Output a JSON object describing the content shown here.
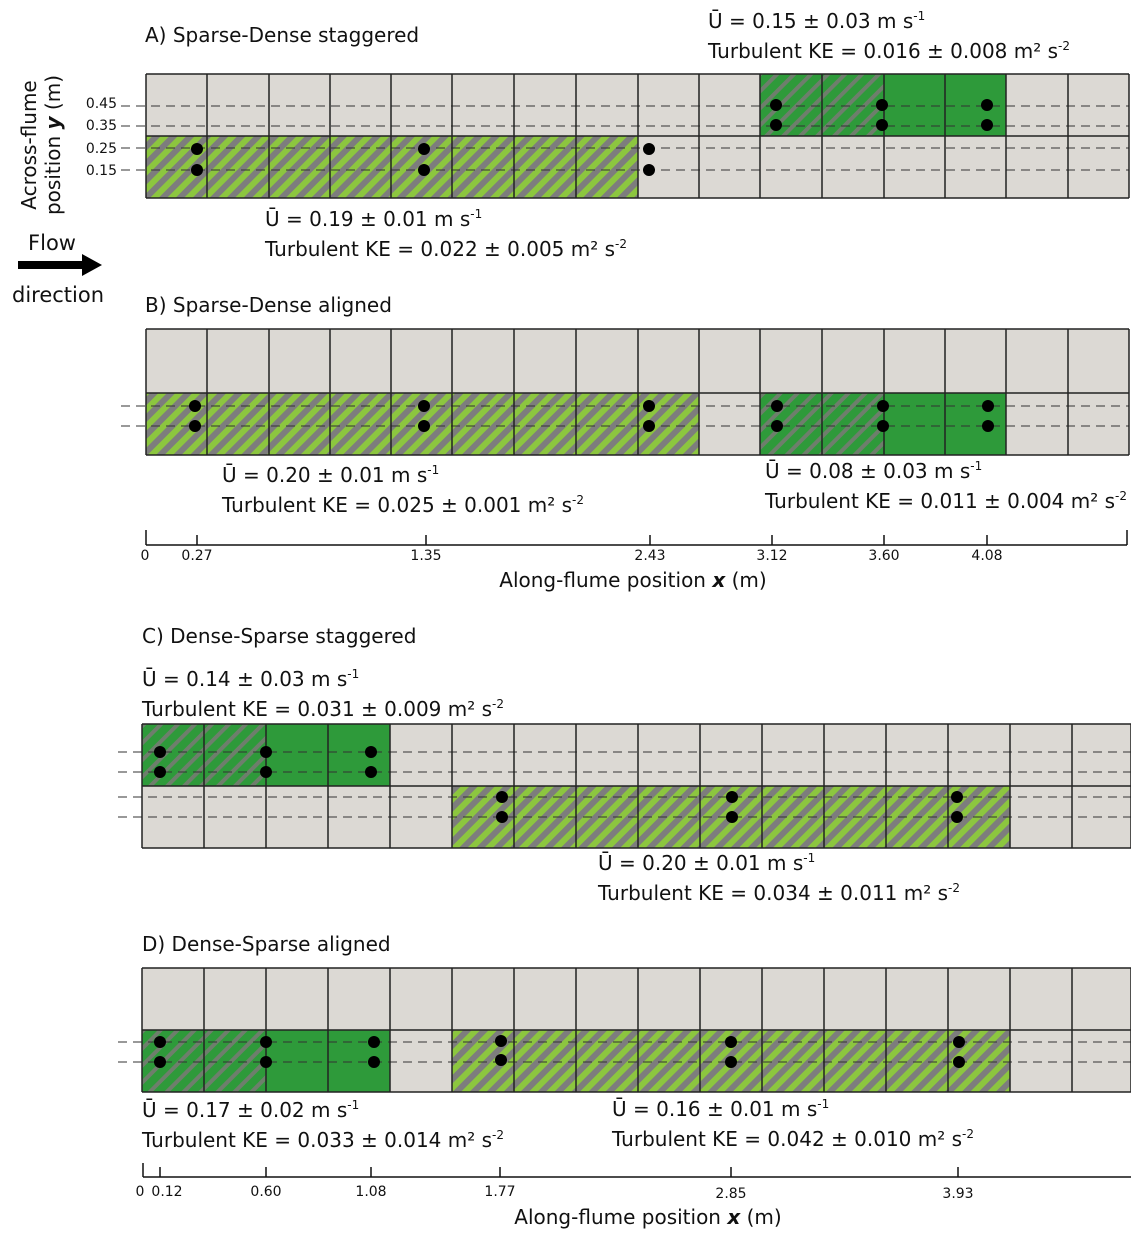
{
  "flow_label": {
    "line1": "Flow",
    "line2": "direction"
  },
  "y_axis": {
    "title_line1": "Across-flume",
    "title_line2_prefix": "position ",
    "title_var": "y",
    "title_line2_suffix": " (m)",
    "ticks": [
      "0.45",
      "0.35",
      "0.25",
      "0.15"
    ]
  },
  "panels": [
    {
      "title": "A) Sparse-Dense staggered",
      "stats": [
        {
          "u": "Ū = 0.19 ± 0.01 m s",
          "u_exp": "-1",
          "tke": "Turbulent KE = 0.022 ± 0.005 m² s",
          "tke_exp": "-2"
        },
        {
          "u": "Ū = 0.15 ± 0.03 m s",
          "u_exp": "-1",
          "tke": "Turbulent KE = 0.016 ± 0.008 m² s",
          "tke_exp": "-2"
        }
      ]
    },
    {
      "title": "B) Sparse-Dense aligned",
      "stats": [
        {
          "u": "Ū = 0.20 ± 0.01 m s",
          "u_exp": "-1",
          "tke": "Turbulent KE = 0.025 ± 0.001 m² s",
          "tke_exp": "-2"
        },
        {
          "u": "Ū = 0.08 ± 0.03 m s",
          "u_exp": "-1",
          "tke": "Turbulent KE = 0.011 ± 0.004 m² s",
          "tke_exp": "-2"
        }
      ]
    },
    {
      "title": "C) Dense-Sparse staggered",
      "stats": [
        {
          "u": "Ū = 0.14 ± 0.03 m s",
          "u_exp": "-1",
          "tke": "Turbulent KE = 0.031 ± 0.009 m² s",
          "tke_exp": "-2"
        },
        {
          "u": "Ū = 0.20 ± 0.01 m s",
          "u_exp": "-1",
          "tke": "Turbulent KE = 0.034 ± 0.011 m² s",
          "tke_exp": "-2"
        }
      ]
    },
    {
      "title": "D) Dense-Sparse aligned",
      "stats": [
        {
          "u": "Ū = 0.17 ± 0.02 m s",
          "u_exp": "-1",
          "tke": "Turbulent KE = 0.033 ± 0.014 m² s",
          "tke_exp": "-2"
        },
        {
          "u": "Ū = 0.16 ± 0.01 m s",
          "u_exp": "-1",
          "tke": "Turbulent KE = 0.042 ± 0.010 m² s",
          "tke_exp": "-2"
        }
      ]
    }
  ],
  "x_axis_1": {
    "ticks": [
      "0",
      "0.27",
      "1.35",
      "2.43",
      "3.12",
      "3.60",
      "4.08"
    ],
    "title_prefix": "Along-flume position ",
    "title_var": "x",
    "title_suffix": " (m)"
  },
  "x_axis_2": {
    "ticks": [
      "0",
      "0.12",
      "0.60",
      "1.08",
      "1.77",
      "2.85",
      "3.93"
    ],
    "title_prefix": "Along-flume position ",
    "title_var": "x",
    "title_suffix": " (m)"
  },
  "colors": {
    "empty_cell": "#dcd9d4",
    "dense_green": "#2e9a3a",
    "sparse_light": "#8cc63f",
    "sparse_stripe": "#7a7a7a",
    "dense_stripe": "#7a8a78",
    "grid_line": "#222222"
  }
}
